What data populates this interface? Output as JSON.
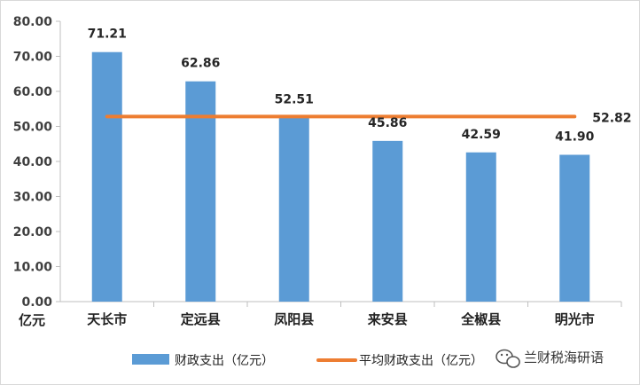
{
  "chart_data": {
    "type": "bar",
    "categories": [
      "天长市",
      "定远县",
      "凤阳县",
      "来安县",
      "全椒县",
      "明光市"
    ],
    "series": [
      {
        "name": "财政支出（亿元）",
        "type": "bar",
        "values": [
          71.21,
          62.86,
          52.51,
          45.86,
          42.59,
          41.9
        ],
        "labels": [
          "71.21",
          "62.86",
          "52.51",
          "45.86",
          "42.59",
          "41.90"
        ],
        "color": "#5B9BD5"
      },
      {
        "name": "平均财政支出（亿元）",
        "type": "line",
        "value": 52.82,
        "label": "52.82",
        "color": "#ED7D31"
      }
    ],
    "y_ticks": [
      "0.00",
      "10.00",
      "20.00",
      "30.00",
      "40.00",
      "50.00",
      "60.00",
      "70.00",
      "80.00"
    ],
    "ylim": [
      0,
      80
    ],
    "ylabel": "亿元",
    "legend": "bottom",
    "grid": false
  },
  "watermark": {
    "text": "兰财税海研语"
  }
}
